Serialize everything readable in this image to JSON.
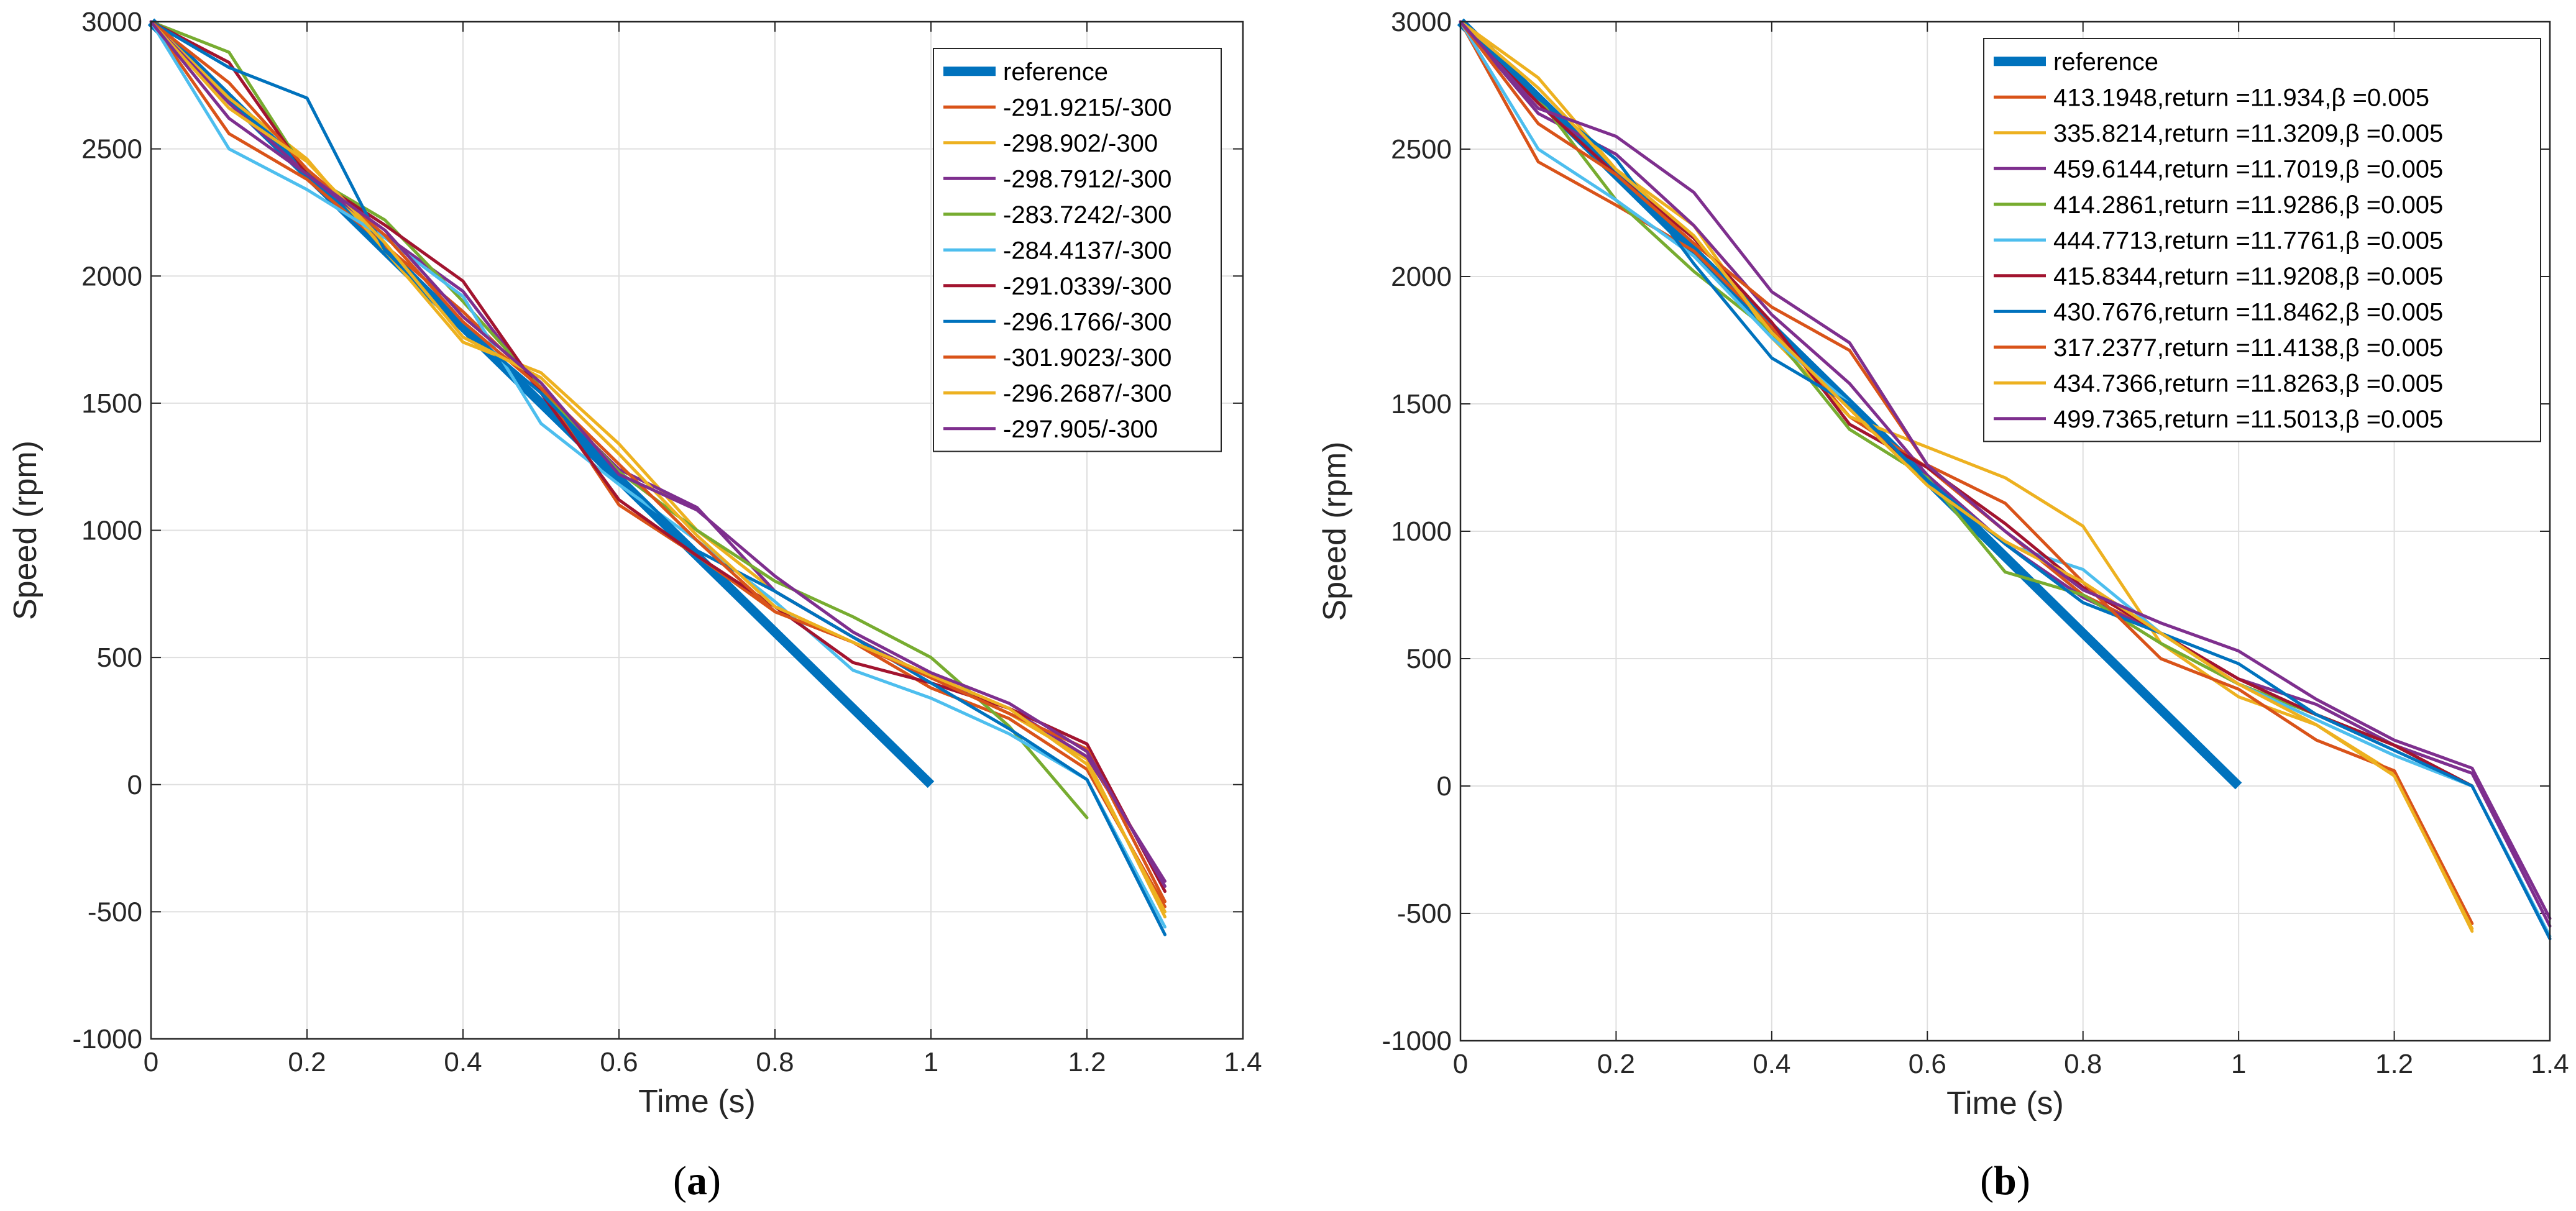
{
  "chart_data": [
    {
      "type": "line",
      "panel_label": "a",
      "xlabel": "Time (s)",
      "ylabel": "Speed (rpm)",
      "xlim": [
        0,
        1.4
      ],
      "ylim": [
        -1000,
        3000
      ],
      "xticks": [
        "0",
        "0.2",
        "0.4",
        "0.6",
        "0.8",
        "1",
        "1.2",
        "1.4"
      ],
      "yticks": [
        "-1000",
        "-500",
        "0",
        "500",
        "1000",
        "1500",
        "2000",
        "2500",
        "3000"
      ],
      "grid": true,
      "legend": "top-right",
      "series": [
        {
          "name": "reference",
          "color": "#0072BD",
          "thick": true,
          "x": [
            0,
            1
          ],
          "y": [
            3000,
            0
          ]
        },
        {
          "name": "-291.9215/-300",
          "color": "#D95319",
          "x": [
            0,
            0.1,
            0.2,
            0.3,
            0.4,
            0.5,
            0.6,
            0.7,
            0.8,
            0.9,
            1.0,
            1.1,
            1.2,
            1.3
          ],
          "y": [
            3000,
            2560,
            2380,
            2120,
            1860,
            1560,
            1100,
            900,
            680,
            560,
            380,
            260,
            60,
            -480
          ]
        },
        {
          "name": "-298.902/-300",
          "color": "#EDB120",
          "x": [
            0,
            0.1,
            0.2,
            0.3,
            0.4,
            0.5,
            0.6,
            0.7,
            0.8,
            0.9,
            1.0,
            1.1,
            1.2,
            1.3
          ],
          "y": [
            3000,
            2700,
            2460,
            2100,
            1740,
            1620,
            1340,
            1000,
            760,
            580,
            420,
            280,
            100,
            -520
          ]
        },
        {
          "name": "-298.7912/-300",
          "color": "#7E2F8E",
          "x": [
            0,
            0.1,
            0.2,
            0.3,
            0.4,
            0.5,
            0.6,
            0.7,
            0.8,
            0.9,
            1.0,
            1.1,
            1.2,
            1.3
          ],
          "y": [
            3000,
            2680,
            2400,
            2160,
            1940,
            1540,
            1240,
            1090,
            760,
            580,
            420,
            300,
            110,
            -380
          ]
        },
        {
          "name": "-283.7242/-300",
          "color": "#77AC30",
          "x": [
            0,
            0.1,
            0.2,
            0.3,
            0.4,
            0.5,
            0.6,
            0.7,
            0.8,
            0.9,
            1.0,
            1.1,
            1.2
          ],
          "y": [
            3000,
            2880,
            2400,
            2220,
            1900,
            1560,
            1230,
            1000,
            800,
            660,
            500,
            230,
            -130
          ]
        },
        {
          "name": "-284.4137/-300",
          "color": "#4DBEEE",
          "x": [
            0,
            0.1,
            0.2,
            0.3,
            0.4,
            0.5,
            0.6,
            0.7,
            0.8,
            0.9,
            1.0,
            1.1,
            1.2,
            1.3
          ],
          "y": [
            3000,
            2500,
            2340,
            2150,
            1920,
            1420,
            1180,
            960,
            720,
            450,
            340,
            200,
            20,
            -560
          ]
        },
        {
          "name": "-291.0339/-300",
          "color": "#A2142F",
          "x": [
            0,
            0.1,
            0.2,
            0.3,
            0.4,
            0.5,
            0.6,
            0.7,
            0.8,
            0.9,
            1.0,
            1.1,
            1.2,
            1.3
          ],
          "y": [
            3000,
            2840,
            2400,
            2200,
            1980,
            1540,
            1120,
            900,
            700,
            480,
            400,
            300,
            160,
            -420
          ]
        },
        {
          "name": "-296.1766/-300",
          "color": "#0072BD",
          "x": [
            0,
            0.1,
            0.2,
            0.3,
            0.4,
            0.5,
            0.6,
            0.7,
            0.8,
            0.9,
            1.0,
            1.1,
            1.2,
            1.3
          ],
          "y": [
            3000,
            2820,
            2700,
            2100,
            1800,
            1540,
            1220,
            920,
            760,
            580,
            400,
            220,
            20,
            -590
          ]
        },
        {
          "name": "-301.9023/-300",
          "color": "#D95319",
          "x": [
            0,
            0.1,
            0.2,
            0.3,
            0.4,
            0.5,
            0.6,
            0.7,
            0.8,
            0.9,
            1.0,
            1.1,
            1.2,
            1.3
          ],
          "y": [
            3000,
            2760,
            2420,
            2160,
            1820,
            1560,
            1260,
            960,
            680,
            560,
            420,
            280,
            140,
            -460
          ]
        },
        {
          "name": "-296.2687/-300",
          "color": "#EDB120",
          "x": [
            0,
            0.1,
            0.2,
            0.3,
            0.4,
            0.5,
            0.6,
            0.7,
            0.8,
            0.9,
            1.0,
            1.1,
            1.2,
            1.3
          ],
          "y": [
            3000,
            2660,
            2450,
            2130,
            1760,
            1600,
            1300,
            980,
            700,
            560,
            430,
            300,
            80,
            -500
          ]
        },
        {
          "name": "-297.905/-300",
          "color": "#7E2F8E",
          "x": [
            0,
            0.1,
            0.2,
            0.3,
            0.4,
            0.5,
            0.6,
            0.7,
            0.8,
            0.9,
            1.0,
            1.1,
            1.2,
            1.3
          ],
          "y": [
            3000,
            2620,
            2400,
            2180,
            1840,
            1580,
            1220,
            1080,
            820,
            600,
            440,
            320,
            130,
            -400
          ]
        }
      ]
    },
    {
      "type": "line",
      "panel_label": "b",
      "xlabel": "Time (s)",
      "ylabel": "Speed (rpm)",
      "xlim": [
        0,
        1.4
      ],
      "ylim": [
        -1000,
        3000
      ],
      "xticks": [
        "0",
        "0.2",
        "0.4",
        "0.6",
        "0.8",
        "1",
        "1.2",
        "1.4"
      ],
      "yticks": [
        "-1000",
        "-500",
        "0",
        "500",
        "1000",
        "1500",
        "2000",
        "2500",
        "3000"
      ],
      "grid": true,
      "legend": "top-right",
      "series": [
        {
          "name": "reference",
          "color": "#0072BD",
          "thick": true,
          "x": [
            0,
            1
          ],
          "y": [
            3000,
            0
          ]
        },
        {
          "name": "413.1948,return =11.934,β =0.005",
          "color": "#D95319",
          "x": [
            0,
            0.1,
            0.2,
            0.3,
            0.4,
            0.5,
            0.6,
            0.7,
            0.8,
            0.9,
            1.0,
            1.1,
            1.2,
            1.3
          ],
          "y": [
            3000,
            2450,
            2280,
            2100,
            1800,
            1450,
            1250,
            1000,
            750,
            600,
            400,
            280,
            160,
            0
          ]
        },
        {
          "name": "335.8214,return =11.3209,β =0.005",
          "color": "#EDB120",
          "x": [
            0,
            0.1,
            0.2,
            0.3,
            0.4,
            0.5,
            0.6,
            0.7,
            0.8,
            0.9,
            1.0,
            1.1,
            1.2,
            1.3
          ],
          "y": [
            3000,
            2780,
            2420,
            2200,
            1760,
            1450,
            1330,
            1210,
            1020,
            560,
            350,
            240,
            50,
            -570
          ]
        },
        {
          "name": "459.6144,return =11.7019,β =0.005",
          "color": "#7E2F8E",
          "x": [
            0,
            0.1,
            0.2,
            0.3,
            0.4,
            0.5,
            0.6,
            0.7,
            0.8,
            0.9,
            1.0,
            1.1,
            1.2,
            1.3,
            1.4
          ],
          "y": [
            3000,
            2640,
            2480,
            2200,
            1850,
            1580,
            1220,
            950,
            740,
            600,
            420,
            320,
            160,
            50,
            -550
          ]
        },
        {
          "name": "414.2861,return =11.9286,β =0.005",
          "color": "#77AC30",
          "x": [
            0,
            0.1,
            0.2,
            0.3,
            0.4,
            0.5,
            0.6,
            0.7,
            0.8,
            0.9,
            1.0,
            1.1,
            1.2,
            1.3
          ],
          "y": [
            3000,
            2700,
            2300,
            2020,
            1780,
            1400,
            1210,
            840,
            750,
            560,
            400,
            280,
            160,
            0
          ]
        },
        {
          "name": "444.7713,return =11.7761,β =0.005",
          "color": "#4DBEEE",
          "x": [
            0,
            0.1,
            0.2,
            0.3,
            0.4,
            0.5,
            0.6,
            0.7,
            0.8,
            0.9,
            1.0,
            1.1,
            1.2,
            1.3,
            1.4
          ],
          "y": [
            3000,
            2500,
            2300,
            2080,
            1760,
            1500,
            1200,
            950,
            850,
            600,
            400,
            260,
            120,
            0,
            -590
          ]
        },
        {
          "name": "415.8344,return =11.9208,β =0.005",
          "color": "#A2142F",
          "x": [
            0,
            0.1,
            0.2,
            0.3,
            0.4,
            0.5,
            0.6,
            0.7,
            0.8,
            0.9,
            1.0,
            1.1,
            1.2,
            1.3
          ],
          "y": [
            3000,
            2680,
            2400,
            2150,
            1820,
            1420,
            1250,
            1030,
            780,
            600,
            420,
            280,
            160,
            0
          ]
        },
        {
          "name": "430.7676,return =11.8462,β =0.005",
          "color": "#0072BD",
          "x": [
            0,
            0.1,
            0.2,
            0.3,
            0.4,
            0.5,
            0.6,
            0.7,
            0.8,
            0.9,
            1.0,
            1.1,
            1.2,
            1.3,
            1.4
          ],
          "y": [
            3000,
            2700,
            2460,
            2050,
            1680,
            1500,
            1200,
            950,
            720,
            600,
            480,
            280,
            140,
            0,
            -600
          ]
        },
        {
          "name": "317.2377,return =11.4138,β =0.005",
          "color": "#D95319",
          "x": [
            0,
            0.1,
            0.2,
            0.3,
            0.4,
            0.5,
            0.6,
            0.7,
            0.8,
            0.9,
            1.0,
            1.1,
            1.2,
            1.3
          ],
          "y": [
            3000,
            2600,
            2400,
            2130,
            1880,
            1710,
            1260,
            1110,
            800,
            500,
            380,
            180,
            60,
            -540
          ]
        },
        {
          "name": "434.7366,return =11.8263,β =0.005",
          "color": "#EDB120",
          "x": [
            0,
            0.1,
            0.2,
            0.3,
            0.4,
            0.5,
            0.6,
            0.7,
            0.8,
            0.9,
            1.0,
            1.1,
            1.2,
            1.3
          ],
          "y": [
            3000,
            2740,
            2420,
            2160,
            1780,
            1480,
            1180,
            960,
            800,
            600,
            400,
            240,
            40,
            -560
          ]
        },
        {
          "name": "499.7365,return =11.5013,β =0.005",
          "color": "#7E2F8E",
          "x": [
            0,
            0.1,
            0.2,
            0.3,
            0.4,
            0.5,
            0.6,
            0.7,
            0.8,
            0.9,
            1.0,
            1.1,
            1.2,
            1.3,
            1.4
          ],
          "y": [
            3000,
            2660,
            2550,
            2330,
            1940,
            1740,
            1260,
            1000,
            770,
            640,
            530,
            340,
            180,
            70,
            -520
          ]
        }
      ]
    }
  ]
}
